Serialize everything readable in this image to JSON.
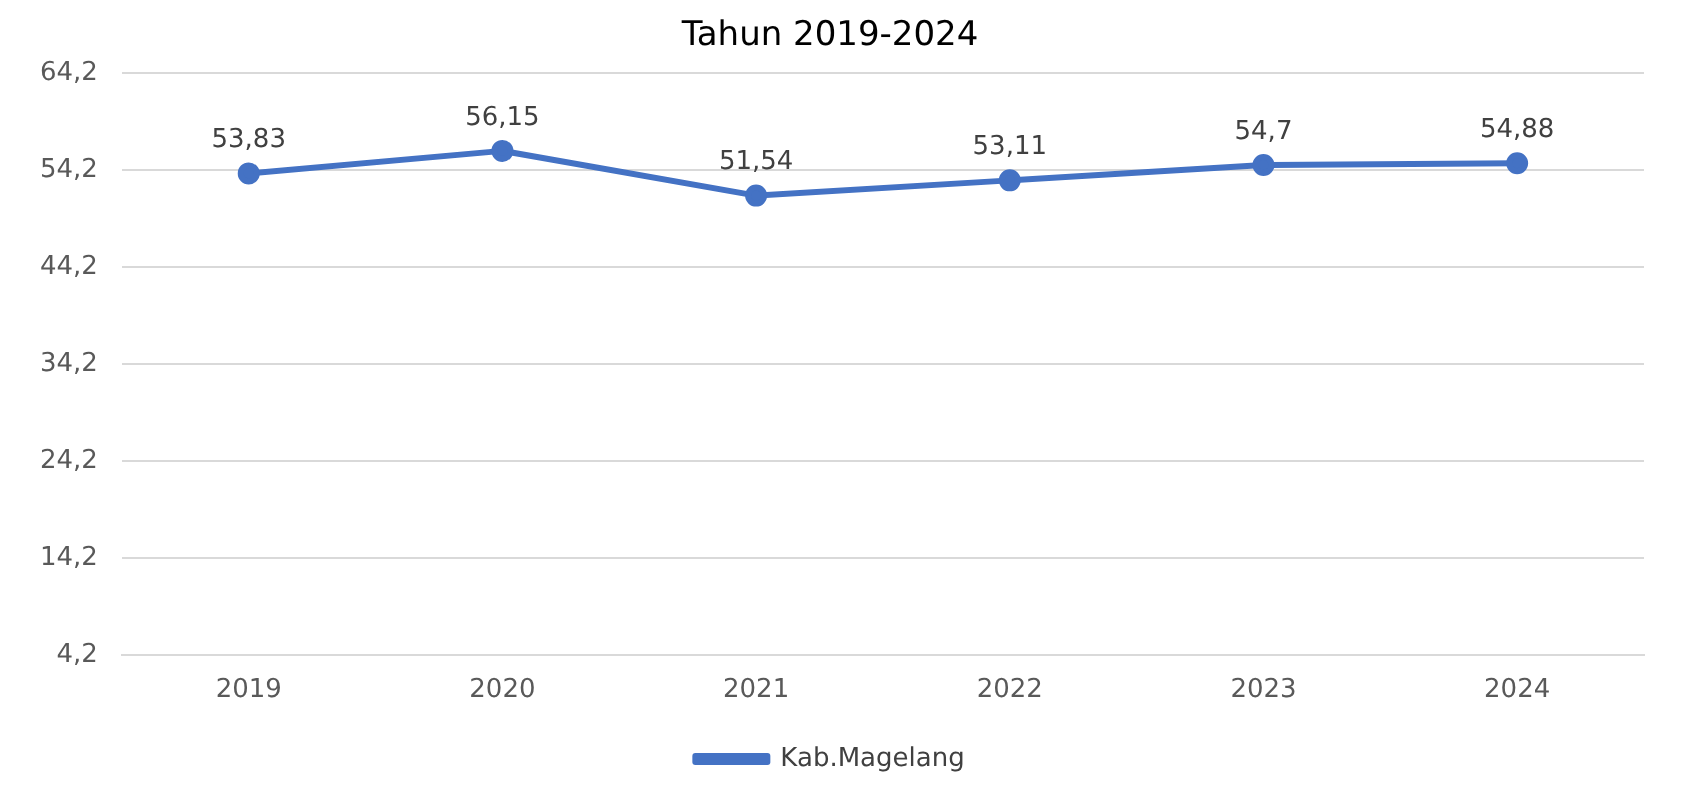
{
  "chart_data": {
    "type": "line",
    "title": "Tahun 2019-2024",
    "categories": [
      "2019",
      "2020",
      "2021",
      "2022",
      "2023",
      "2024"
    ],
    "series": [
      {
        "name": "Kab.Magelang",
        "color": "#4472c4",
        "values": [
          53.83,
          56.15,
          51.54,
          53.11,
          54.7,
          54.88
        ],
        "value_labels": [
          "53,83",
          "56,15",
          "51,54",
          "53,11",
          "54,7",
          "54,88"
        ]
      }
    ],
    "ylim": [
      4.2,
      64.2
    ],
    "yticks": [
      {
        "value": 4.2,
        "label": "4,2"
      },
      {
        "value": 14.2,
        "label": "14,2"
      },
      {
        "value": 24.2,
        "label": "24,2"
      },
      {
        "value": 34.2,
        "label": "34,2"
      },
      {
        "value": 44.2,
        "label": "44,2"
      },
      {
        "value": 54.2,
        "label": "54,2"
      },
      {
        "value": 64.2,
        "label": "64,2"
      }
    ],
    "grid": "y",
    "legend": "bottom",
    "marker": "circle",
    "line_style": "solid"
  }
}
